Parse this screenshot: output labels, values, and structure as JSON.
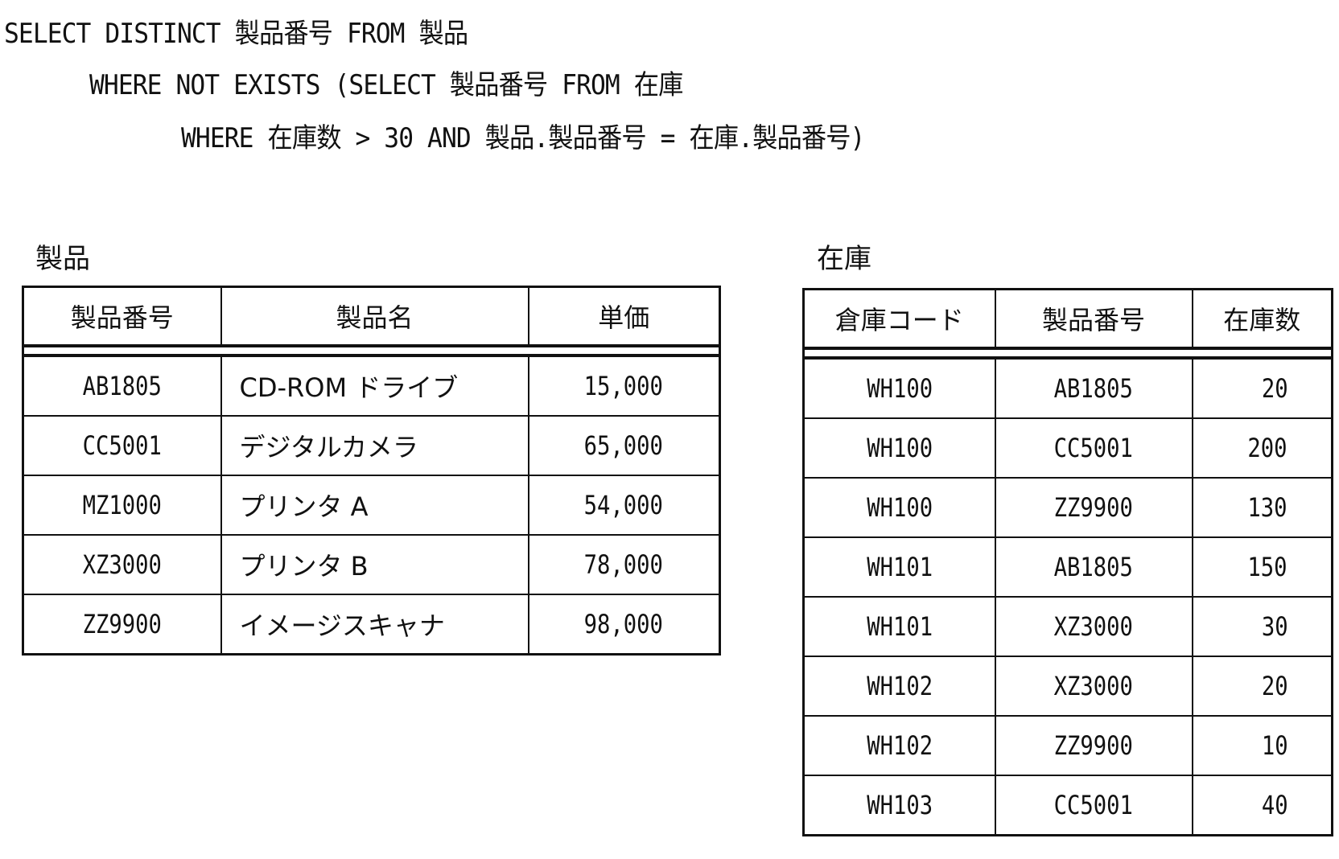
{
  "sql": {
    "line1": "SELECT DISTINCT 製品番号 FROM 製品",
    "line2": "WHERE NOT EXISTS (SELECT 製品番号 FROM 在庫",
    "line3": "WHERE 在庫数 > 30 AND 製品.製品番号 = 在庫.製品番号)"
  },
  "products": {
    "title": "製品",
    "headers": [
      "製品番号",
      "製品名",
      "単価"
    ],
    "rows": [
      [
        "AB1805",
        "CD-ROM ドライブ",
        "15,000"
      ],
      [
        "CC5001",
        "デジタルカメラ",
        "65,000"
      ],
      [
        "MZ1000",
        "プリンタ A",
        "54,000"
      ],
      [
        "XZ3000",
        "プリンタ B",
        "78,000"
      ],
      [
        "ZZ9900",
        "イメージスキャナ",
        "98,000"
      ]
    ]
  },
  "stock": {
    "title": "在庫",
    "headers": [
      "倉庫コード",
      "製品番号",
      "在庫数"
    ],
    "rows": [
      [
        "WH100",
        "AB1805",
        "20"
      ],
      [
        "WH100",
        "CC5001",
        "200"
      ],
      [
        "WH100",
        "ZZ9900",
        "130"
      ],
      [
        "WH101",
        "AB1805",
        "150"
      ],
      [
        "WH101",
        "XZ3000",
        "30"
      ],
      [
        "WH102",
        "XZ3000",
        "20"
      ],
      [
        "WH102",
        "ZZ9900",
        "10"
      ],
      [
        "WH103",
        "CC5001",
        "40"
      ]
    ]
  }
}
